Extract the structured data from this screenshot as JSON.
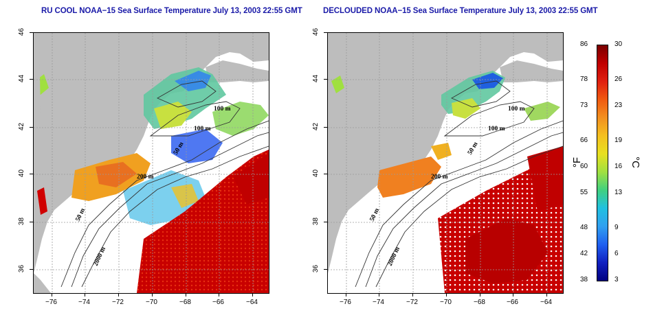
{
  "titles": {
    "left": "RU COOL NOAA−15 Sea Surface Temperature July 13, 2003 22:55 GMT",
    "right": "DECLOUDED NOAA−15 Sea Surface Temperature July 13, 2003 22:55 GMT"
  },
  "map": {
    "lon_ticks": [
      "−76",
      "−74",
      "−72",
      "−70",
      "−68",
      "−66",
      "−64"
    ],
    "lat_ticks": [
      "46",
      "44",
      "42",
      "40",
      "38",
      "36"
    ],
    "lon_range": [
      -77,
      -63
    ],
    "lat_range": [
      35,
      46
    ],
    "grid": true,
    "land_color": "#bdbdbd",
    "contour_labels": [
      "100 m",
      "100 m",
      "50 m",
      "200 m",
      "50 m",
      "2000 m"
    ]
  },
  "colorbar": {
    "fahrenheit_labels": [
      "86",
      "78",
      "73",
      "66",
      "60",
      "55",
      "48",
      "42",
      "38"
    ],
    "celsius_labels": [
      "30",
      "26",
      "23",
      "19",
      "16",
      "13",
      "9",
      "6",
      "3"
    ],
    "fahrenheit_unit": "°F",
    "celsius_unit": "°C",
    "range_c": [
      3,
      30
    ],
    "colors": [
      "#7a0000",
      "#c00000",
      "#e02010",
      "#f05a10",
      "#f29020",
      "#f4c020",
      "#e8e020",
      "#a0e040",
      "#40d080",
      "#20c0e0",
      "#30a0f0",
      "#2060f0",
      "#1020c0",
      "#000080"
    ]
  }
}
